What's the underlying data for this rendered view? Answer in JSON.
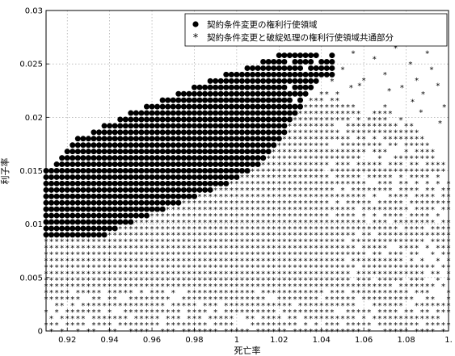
{
  "chart_data": {
    "type": "scatter",
    "title": "",
    "xlabel": "死亡率",
    "ylabel": "利子率",
    "xlim": [
      0.91,
      1.1
    ],
    "ylim": [
      0,
      0.03
    ],
    "grid": true,
    "legend_position": "top-right",
    "x_ticks": [
      {
        "value": 0.92,
        "label": "0.92"
      },
      {
        "value": 0.94,
        "label": "0.94"
      },
      {
        "value": 0.96,
        "label": "0.96"
      },
      {
        "value": 0.98,
        "label": "0.98"
      },
      {
        "value": 1.0,
        "label": "1"
      },
      {
        "value": 1.02,
        "label": "1.02"
      },
      {
        "value": 1.04,
        "label": "1.04"
      },
      {
        "value": 1.06,
        "label": "1.06"
      },
      {
        "value": 1.08,
        "label": "1.08"
      },
      {
        "value": 1.1,
        "label": "1."
      }
    ],
    "y_ticks": [
      {
        "value": 0,
        "label": "0"
      },
      {
        "value": 0.005,
        "label": "0.005"
      },
      {
        "value": 0.01,
        "label": "0.01"
      },
      {
        "value": 0.015,
        "label": "0.015"
      },
      {
        "value": 0.02,
        "label": "0.02"
      },
      {
        "value": 0.025,
        "label": "0.025"
      },
      {
        "value": 0.03,
        "label": "0.03"
      }
    ],
    "series": [
      {
        "name": "契約条件変更の権利行使領域",
        "marker": "filled-circle",
        "color": "#000000",
        "grid": {
          "x_start": 0.91,
          "x_step": 0.0025,
          "y_start": 0.009,
          "y_step": 0.0006
        },
        "columns": [
          {
            "x": 0.91,
            "y_min": 0.009,
            "y_max": 0.015
          },
          {
            "x": 0.9125,
            "y_min": 0.009,
            "y_max": 0.0152
          },
          {
            "x": 0.915,
            "y_min": 0.009,
            "y_max": 0.0158
          },
          {
            "x": 0.9175,
            "y_min": 0.009,
            "y_max": 0.0165
          },
          {
            "x": 0.92,
            "y_min": 0.009,
            "y_max": 0.017
          },
          {
            "x": 0.9225,
            "y_min": 0.009,
            "y_max": 0.0175
          },
          {
            "x": 0.925,
            "y_min": 0.009,
            "y_max": 0.018
          },
          {
            "x": 0.9275,
            "y_min": 0.009,
            "y_max": 0.0182
          },
          {
            "x": 0.93,
            "y_min": 0.009,
            "y_max": 0.0185
          },
          {
            "x": 0.9325,
            "y_min": 0.009,
            "y_max": 0.0188
          },
          {
            "x": 0.935,
            "y_min": 0.009,
            "y_max": 0.019
          },
          {
            "x": 0.9375,
            "y_min": 0.009,
            "y_max": 0.0192
          },
          {
            "x": 0.94,
            "y_min": 0.0094,
            "y_max": 0.0195
          },
          {
            "x": 0.9425,
            "y_min": 0.0096,
            "y_max": 0.0197
          },
          {
            "x": 0.945,
            "y_min": 0.0098,
            "y_max": 0.02
          },
          {
            "x": 0.9475,
            "y_min": 0.01,
            "y_max": 0.0202
          },
          {
            "x": 0.95,
            "y_min": 0.0102,
            "y_max": 0.0204
          },
          {
            "x": 0.9525,
            "y_min": 0.0104,
            "y_max": 0.0206
          },
          {
            "x": 0.955,
            "y_min": 0.0106,
            "y_max": 0.0208
          },
          {
            "x": 0.9575,
            "y_min": 0.0108,
            "y_max": 0.021
          },
          {
            "x": 0.96,
            "y_min": 0.011,
            "y_max": 0.0212
          },
          {
            "x": 0.9625,
            "y_min": 0.0112,
            "y_max": 0.0214
          },
          {
            "x": 0.965,
            "y_min": 0.0114,
            "y_max": 0.0216
          },
          {
            "x": 0.9675,
            "y_min": 0.0116,
            "y_max": 0.0218
          },
          {
            "x": 0.97,
            "y_min": 0.0118,
            "y_max": 0.022
          },
          {
            "x": 0.9725,
            "y_min": 0.012,
            "y_max": 0.0222
          },
          {
            "x": 0.975,
            "y_min": 0.0122,
            "y_max": 0.0225
          },
          {
            "x": 0.9775,
            "y_min": 0.0124,
            "y_max": 0.0226
          },
          {
            "x": 0.98,
            "y_min": 0.0126,
            "y_max": 0.0228
          },
          {
            "x": 0.9825,
            "y_min": 0.0128,
            "y_max": 0.023
          },
          {
            "x": 0.985,
            "y_min": 0.013,
            "y_max": 0.0232
          },
          {
            "x": 0.9875,
            "y_min": 0.0132,
            "y_max": 0.0234
          },
          {
            "x": 0.99,
            "y_min": 0.0134,
            "y_max": 0.0236
          },
          {
            "x": 0.9925,
            "y_min": 0.0136,
            "y_max": 0.0238
          },
          {
            "x": 0.995,
            "y_min": 0.0138,
            "y_max": 0.024
          },
          {
            "x": 0.9975,
            "y_min": 0.014,
            "y_max": 0.024
          },
          {
            "x": 1.0,
            "y_min": 0.0142,
            "y_max": 0.0242
          },
          {
            "x": 1.0025,
            "y_min": 0.0145,
            "y_max": 0.0244
          },
          {
            "x": 1.005,
            "y_min": 0.0148,
            "y_max": 0.0246
          },
          {
            "x": 1.0075,
            "y_min": 0.0152,
            "y_max": 0.0248
          },
          {
            "x": 1.01,
            "y_min": 0.0156,
            "y_max": 0.025
          },
          {
            "x": 1.0125,
            "y_min": 0.016,
            "y_max": 0.0252
          },
          {
            "x": 1.015,
            "y_min": 0.0166,
            "y_max": 0.0254
          },
          {
            "x": 1.0175,
            "y_min": 0.0172,
            "y_max": 0.0256
          },
          {
            "x": 1.02,
            "y_min": 0.0178,
            "y_max": 0.0258
          },
          {
            "x": 1.0225,
            "y_min": 0.0186,
            "y_max": 0.026
          },
          {
            "x": 1.025,
            "y_min": 0.0194,
            "y_max": 0.0262
          },
          {
            "x": 1.0275,
            "y_min": 0.0202,
            "y_max": 0.0262
          },
          {
            "x": 1.03,
            "y_min": 0.021,
            "y_max": 0.0266
          },
          {
            "x": 1.0325,
            "y_min": 0.0218,
            "y_max": 0.0262
          },
          {
            "x": 1.035,
            "y_min": 0.0226,
            "y_max": 0.026
          },
          {
            "x": 1.0375,
            "y_min": 0.0234,
            "y_max": 0.0258
          },
          {
            "x": 1.04,
            "y_min": 0.024,
            "y_max": 0.0256
          },
          {
            "x": 1.0425,
            "y_min": 0.024,
            "y_max": 0.0262
          },
          {
            "x": 1.045,
            "y_min": 0.024,
            "y_max": 0.0258
          }
        ]
      },
      {
        "name": "契約条件変更と破綻処理の権利行使領域共通部分",
        "marker": "asterisk",
        "color": "#000000",
        "grid": {
          "x_start": 0.91,
          "x_step": 0.0025,
          "y_start": 0.0,
          "y_step": 0.0006
        },
        "boundary": [
          {
            "x": 0.91,
            "y_max": 0.009
          },
          {
            "x": 0.94,
            "y_max": 0.0092
          },
          {
            "x": 1.0,
            "y_max": 0.014
          },
          {
            "x": 1.03,
            "y_max": 0.0205
          },
          {
            "x": 1.045,
            "y_max": 0.0238
          },
          {
            "x": 1.05,
            "y_max": 0.0215
          },
          {
            "x": 1.06,
            "y_max": 0.0205
          },
          {
            "x": 1.07,
            "y_max": 0.021
          },
          {
            "x": 1.08,
            "y_max": 0.02
          },
          {
            "x": 1.09,
            "y_max": 0.018
          },
          {
            "x": 1.1,
            "y_max": 0.015
          }
        ],
        "scattered_points": [
          [
            1.045,
            0.025
          ],
          [
            1.05,
            0.0245
          ],
          [
            1.055,
            0.026
          ],
          [
            1.058,
            0.023
          ],
          [
            1.062,
            0.0275
          ],
          [
            1.065,
            0.0255
          ],
          [
            1.07,
            0.024
          ],
          [
            1.075,
            0.0265
          ],
          [
            1.078,
            0.0228
          ],
          [
            1.082,
            0.025
          ],
          [
            1.085,
            0.0235
          ],
          [
            1.088,
            0.0222
          ],
          [
            1.092,
            0.0245
          ],
          [
            1.095,
            0.023
          ],
          [
            1.098,
            0.021
          ],
          [
            1.068,
            0.0285
          ],
          [
            1.08,
            0.027
          ],
          [
            1.09,
            0.026
          ],
          [
            1.072,
            0.0225
          ],
          [
            1.087,
            0.0205
          ],
          [
            1.096,
            0.0195
          ],
          [
            1.06,
            0.0235
          ],
          [
            1.054,
            0.0228
          ],
          [
            1.083,
            0.0215
          ]
        ]
      }
    ]
  }
}
